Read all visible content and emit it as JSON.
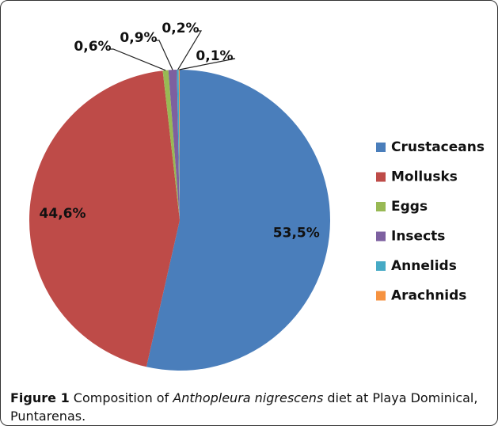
{
  "chart_data": {
    "type": "pie",
    "categories": [
      "Crustaceans",
      "Mollusks",
      "Eggs",
      "Insects",
      "Annelids",
      "Arachnids"
    ],
    "values": [
      53.5,
      44.6,
      0.6,
      0.9,
      0.2,
      0.1
    ],
    "value_labels": [
      "53,5%",
      "44,6%",
      "0,6%",
      "0,9%",
      "0,2%",
      "0,1%"
    ],
    "colors": [
      "#4a7ebb",
      "#be4b48",
      "#98b954",
      "#7d60a0",
      "#46aac5",
      "#f69240"
    ],
    "legend": "right"
  },
  "caption": {
    "label": "Figure 1",
    "parts": [
      " Composition of ",
      "Anthopleura nigrescens",
      " diet at Playa Dominical, Puntarenas."
    ]
  }
}
